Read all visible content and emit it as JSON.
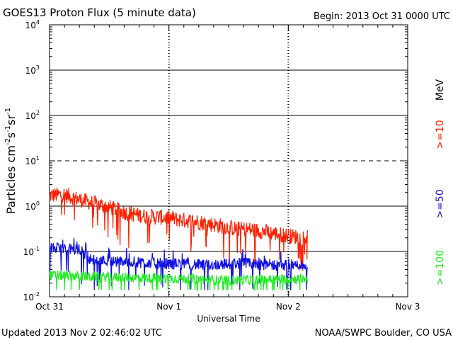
{
  "chart_data": {
    "type": "line",
    "title": "GOES13 Proton Flux (5 minute data)",
    "begin_label": "Begin: 2013 Oct 31 0000 UTC",
    "xlabel": "Universal Time",
    "ylabel": "Particles cm⁻²s⁻¹sr⁻¹",
    "ylabel_parts": {
      "base": "Particles cm",
      "e1": "-2",
      "s": "s",
      "e2": "-1",
      "sr": "sr",
      "e3": "-1"
    },
    "yscale": "log",
    "ylim": [
      0.01,
      10000
    ],
    "y_ticks": [
      {
        "base": "10",
        "exp": "-2"
      },
      {
        "base": "10",
        "exp": "-1"
      },
      {
        "base": "10",
        "exp": "0"
      },
      {
        "base": "10",
        "exp": "1"
      },
      {
        "base": "10",
        "exp": "2"
      },
      {
        "base": "10",
        "exp": "3"
      },
      {
        "base": "10",
        "exp": "4"
      }
    ],
    "x_range_days": [
      0,
      3
    ],
    "x_ticks": [
      "Oct 31",
      "Nov 1",
      "Nov 2",
      "Nov 3"
    ],
    "data_end_day": 2.16,
    "series": [
      {
        "name": ">=10",
        "color": "#ff2000",
        "anchors": [
          [
            0,
            1.7
          ],
          [
            0.12,
            1.8
          ],
          [
            0.25,
            1.4
          ],
          [
            0.4,
            1.1
          ],
          [
            0.5,
            0.95
          ],
          [
            0.65,
            0.7
          ],
          [
            0.8,
            0.6
          ],
          [
            1.0,
            0.55
          ],
          [
            1.1,
            0.5
          ],
          [
            1.25,
            0.45
          ],
          [
            1.4,
            0.38
          ],
          [
            1.55,
            0.32
          ],
          [
            1.7,
            0.3
          ],
          [
            1.85,
            0.26
          ],
          [
            2.0,
            0.22
          ],
          [
            2.16,
            0.2
          ]
        ]
      },
      {
        "name": ">=50",
        "color": "#1010e0",
        "anchors": [
          [
            0,
            0.12
          ],
          [
            0.25,
            0.11
          ],
          [
            0.35,
            0.065
          ],
          [
            0.6,
            0.06
          ],
          [
            0.9,
            0.055
          ],
          [
            1.3,
            0.05
          ],
          [
            1.6,
            0.055
          ],
          [
            1.9,
            0.05
          ],
          [
            2.16,
            0.05
          ]
        ]
      },
      {
        "name": ">=100",
        "color": "#20ee20",
        "anchors": [
          [
            0,
            0.03
          ],
          [
            0.3,
            0.028
          ],
          [
            0.6,
            0.027
          ],
          [
            0.9,
            0.026
          ],
          [
            1.15,
            0.025
          ],
          [
            1.3,
            0.024
          ],
          [
            1.5,
            0.023
          ],
          [
            1.8,
            0.024
          ],
          [
            2.16,
            0.025
          ]
        ]
      }
    ],
    "legend": {
      "position": "right",
      "unit": "MeV",
      "entries": [
        ">=10",
        ">=50",
        ">=100"
      ]
    }
  },
  "footer": {
    "updated": "Updated 2013 Nov  2 02:46:02 UTC",
    "credit": "NOAA/SWPC Boulder, CO USA"
  }
}
